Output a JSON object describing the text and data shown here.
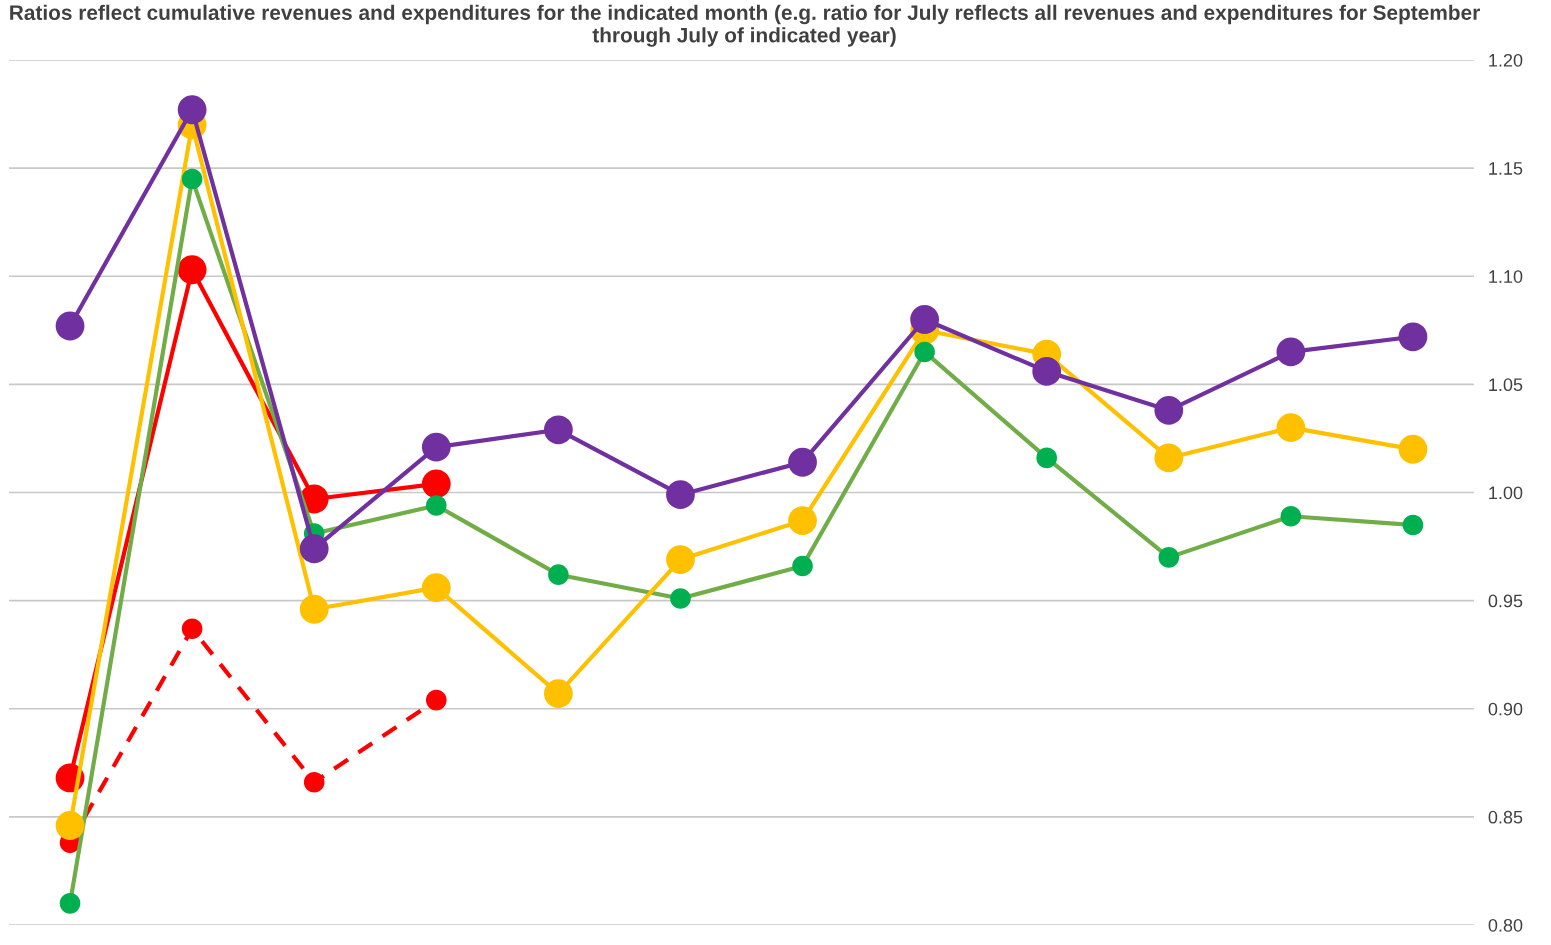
{
  "chart_data": {
    "type": "line",
    "title": "Ratios reflect cumulative revenues and expenditures for the indicated month (e.g. ratio for July reflects all revenues and expenditures for September through July of indicated year)",
    "categories": [
      null,
      null,
      null,
      null,
      null,
      null,
      null,
      null,
      null,
      null,
      null,
      null
    ],
    "series": [
      {
        "color": "#ff0000",
        "line_style": "dashed",
        "values": [
          0.838,
          0.937,
          0.866,
          0.904,
          null,
          null,
          null,
          null,
          null,
          null,
          null,
          null
        ]
      },
      {
        "color": "#ff0000",
        "values": [
          0.868,
          1.103,
          0.997,
          1.004,
          null,
          null,
          null,
          null,
          null,
          null,
          null,
          null
        ]
      },
      {
        "color": "#70ad47",
        "colors": [
          "#00b050",
          "#00b050",
          "#00b050",
          "#00b050",
          "#00b050",
          "#00b050",
          "#00b050",
          "#00b050",
          "#00b050",
          "#00b050",
          "#00b050",
          "#00b050"
        ],
        "values": [
          0.81,
          1.145,
          0.981,
          0.994,
          0.962,
          0.951,
          0.966,
          1.065,
          1.016,
          0.97,
          0.989,
          0.985
        ]
      },
      {
        "color": "#ffc000",
        "values": [
          0.846,
          1.17,
          0.946,
          0.956,
          0.907,
          0.969,
          0.987,
          1.075,
          1.064,
          1.016,
          1.03,
          1.02
        ]
      },
      {
        "color": "#7030a0",
        "values": [
          1.077,
          1.177,
          0.974,
          1.021,
          1.029,
          0.999,
          1.014,
          1.08,
          1.056,
          1.038,
          1.065,
          1.072
        ]
      }
    ],
    "ylim": [
      0.8,
      1.2
    ],
    "yticks": [
      {
        "value": 0.8,
        "label": "0.80"
      },
      {
        "value": 0.85,
        "label": "0.85"
      },
      {
        "value": 0.9,
        "label": "0.90"
      },
      {
        "value": 0.95,
        "label": "0.95"
      },
      {
        "value": 1.0,
        "label": "1.00"
      },
      {
        "value": 1.05,
        "label": "1.05"
      },
      {
        "value": 1.1,
        "label": "1.10"
      },
      {
        "value": 1.15,
        "label": "1.15"
      },
      {
        "value": 1.2,
        "label": "1.20"
      }
    ],
    "grid": "y",
    "marker": "circle",
    "tick_labels": "y",
    "legend": false
  }
}
